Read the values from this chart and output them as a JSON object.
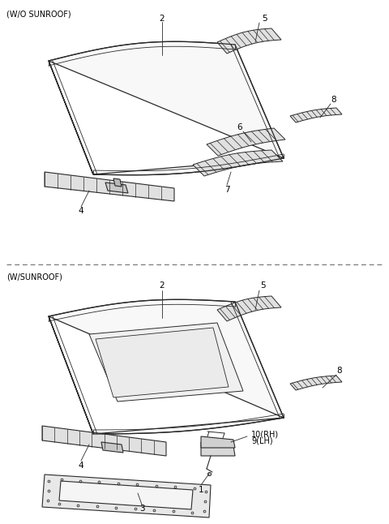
{
  "background_color": "#ffffff",
  "section1_label": "(W/O SUNROOF)",
  "section2_label": "(W/SUNROOF)",
  "line_color": "#2a2a2a",
  "text_color": "#000000",
  "label_fontsize": 7.5,
  "section_fontsize": 7.0,
  "fig_width": 4.8,
  "fig_height": 6.46,
  "dpi": 100
}
